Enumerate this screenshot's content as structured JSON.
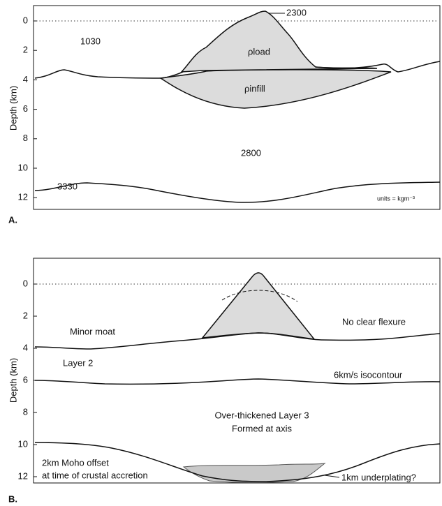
{
  "panels": [
    {
      "label": "A.",
      "y_axis_label": "Depth (km)",
      "yticks": [
        0,
        2,
        4,
        6,
        8,
        10,
        12
      ],
      "annotations": [
        "2300",
        "1030",
        "ρload",
        "ρinfill",
        "2800",
        "3330",
        "units = kgm⁻³"
      ]
    },
    {
      "label": "B.",
      "y_axis_label": "Depth (km)",
      "yticks": [
        0,
        2,
        4,
        6,
        8,
        10,
        12
      ],
      "annotations": [
        "No clear flexure",
        "Minor moat",
        "Layer 2",
        "6km/s isocontour",
        "Over-thickened Layer 3",
        "Formed at axis",
        "2km Moho offset",
        "at time of crustal accretion",
        "1km underplating?"
      ]
    }
  ]
}
